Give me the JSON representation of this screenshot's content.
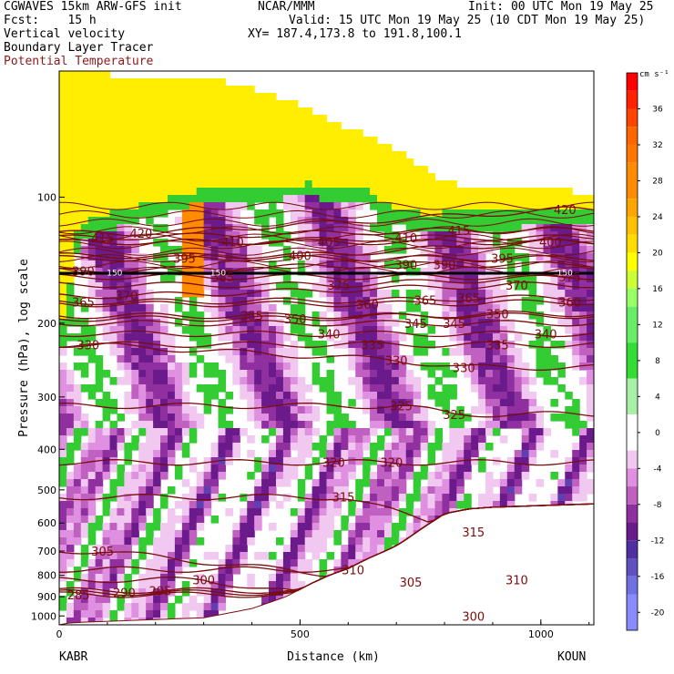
{
  "header": {
    "line1_left": "CGWAVES 15km ARW-GFS init",
    "line1_center": "NCAR/MMM",
    "line1_right": "Init: 00 UTC Mon 19 May 25",
    "line2_left": "Fcst:    15 h",
    "line2_right": "Valid: 15 UTC Mon 19 May 25 (10 CDT Mon 19 May 25)",
    "line3_left": "Vertical velocity",
    "line3_right": "XY= 187.4,173.8 to 191.8,100.1",
    "line4_left": "Boundary Layer Tracer",
    "line5_left": "Potential Temperature"
  },
  "chart_data": {
    "type": "heatmap",
    "xlabel": "Distance (km)",
    "ylabel": "Pressure (hPa), log scale",
    "xlim": [
      0,
      1110
    ],
    "ylim": [
      1050,
      50
    ],
    "x_ticks": [
      "0",
      "500",
      "1000"
    ],
    "x_tick_values": [
      0,
      500,
      1000
    ],
    "y_ticks": [
      "100",
      "200",
      "300",
      "400",
      "500",
      "600",
      "700",
      "800",
      "900",
      "1000"
    ],
    "y_tick_values": [
      100,
      200,
      300,
      400,
      500,
      600,
      700,
      800,
      900,
      1000
    ],
    "left_endpoint": "KABR",
    "right_endpoint": "KOUN",
    "colorbar": {
      "unit": "cm s⁻¹",
      "labels": [
        "36",
        "32",
        "28",
        "24",
        "20",
        "16",
        "12",
        "8",
        "4",
        "0",
        "-4",
        "-8",
        "-12",
        "-16",
        "-20"
      ],
      "label_values": [
        36,
        32,
        28,
        24,
        20,
        16,
        12,
        8,
        4,
        0,
        -4,
        -8,
        -12,
        -16,
        -20
      ],
      "colors": [
        "#ff0000",
        "#ff3300",
        "#ff6600",
        "#ff8c00",
        "#ffaa00",
        "#ffcc00",
        "#ffee00",
        "#ccff33",
        "#99ff66",
        "#55ee55",
        "#33cc33",
        "#ffffff",
        "#f0c8f0",
        "#e090e0",
        "#c060c0",
        "#9030a0",
        "#6a1a8a",
        "#6040b0",
        "#7070e0",
        "#8a8aff"
      ],
      "color_stops": [
        40,
        38,
        36,
        34,
        32,
        30,
        26,
        22,
        18,
        14,
        8,
        2,
        -2,
        -4,
        -6,
        -8,
        -12,
        -14,
        -16,
        -20
      ]
    },
    "isentrope_color": "#7a0c0c",
    "isentrope_labels": [
      {
        "v": "415",
        "x": 90,
        "p": 125
      },
      {
        "v": "420",
        "x": 170,
        "p": 122
      },
      {
        "v": "410",
        "x": 360,
        "p": 128
      },
      {
        "v": "405",
        "x": 560,
        "p": 128
      },
      {
        "v": "410",
        "x": 720,
        "p": 125
      },
      {
        "v": "415",
        "x": 830,
        "p": 120
      },
      {
        "v": "420",
        "x": 1050,
        "p": 107
      },
      {
        "v": "400",
        "x": 1020,
        "p": 128
      },
      {
        "v": "395",
        "x": 260,
        "p": 140
      },
      {
        "v": "400",
        "x": 500,
        "p": 138
      },
      {
        "v": "390",
        "x": 50,
        "p": 150
      },
      {
        "v": "385",
        "x": 340,
        "p": 155
      },
      {
        "v": "390",
        "x": 720,
        "p": 145
      },
      {
        "v": "390",
        "x": 800,
        "p": 145
      },
      {
        "v": "395",
        "x": 920,
        "p": 140
      },
      {
        "v": "375",
        "x": 1060,
        "p": 155
      },
      {
        "v": "370",
        "x": 140,
        "p": 172
      },
      {
        "v": "365",
        "x": 50,
        "p": 178
      },
      {
        "v": "375",
        "x": 580,
        "p": 162
      },
      {
        "v": "370",
        "x": 950,
        "p": 162
      },
      {
        "v": "360",
        "x": 1060,
        "p": 178
      },
      {
        "v": "360",
        "x": 640,
        "p": 180
      },
      {
        "v": "365",
        "x": 760,
        "p": 176
      },
      {
        "v": "365",
        "x": 850,
        "p": 174
      },
      {
        "v": "355",
        "x": 400,
        "p": 192
      },
      {
        "v": "350",
        "x": 490,
        "p": 195
      },
      {
        "v": "350",
        "x": 910,
        "p": 190
      },
      {
        "v": "345",
        "x": 740,
        "p": 200
      },
      {
        "v": "345",
        "x": 820,
        "p": 200
      },
      {
        "v": "340",
        "x": 560,
        "p": 212
      },
      {
        "v": "340",
        "x": 1010,
        "p": 212
      },
      {
        "v": "335",
        "x": 650,
        "p": 225
      },
      {
        "v": "335",
        "x": 910,
        "p": 225
      },
      {
        "v": "330",
        "x": 60,
        "p": 225
      },
      {
        "v": "330",
        "x": 700,
        "p": 245
      },
      {
        "v": "330",
        "x": 840,
        "p": 255
      },
      {
        "v": "325",
        "x": 710,
        "p": 315
      },
      {
        "v": "325",
        "x": 820,
        "p": 330
      },
      {
        "v": "320",
        "x": 570,
        "p": 430
      },
      {
        "v": "320",
        "x": 690,
        "p": 430
      },
      {
        "v": "315",
        "x": 590,
        "p": 520
      },
      {
        "v": "315",
        "x": 860,
        "p": 630
      },
      {
        "v": "310",
        "x": 610,
        "p": 775
      },
      {
        "v": "310",
        "x": 950,
        "p": 820
      },
      {
        "v": "305",
        "x": 90,
        "p": 700
      },
      {
        "v": "305",
        "x": 730,
        "p": 830
      },
      {
        "v": "300",
        "x": 300,
        "p": 820
      },
      {
        "v": "300",
        "x": 860,
        "p": 1000
      },
      {
        "v": "295",
        "x": 210,
        "p": 870
      },
      {
        "v": "290",
        "x": 135,
        "p": 880
      },
      {
        "v": "285",
        "x": 40,
        "p": 890
      }
    ],
    "black_line_labels": [
      {
        "v": "150",
        "x": 115,
        "p": 151
      },
      {
        "v": "150",
        "x": 330,
        "p": 151
      },
      {
        "v": "150",
        "x": 1050,
        "p": 151
      }
    ],
    "tropopause_pressure": 152
  }
}
